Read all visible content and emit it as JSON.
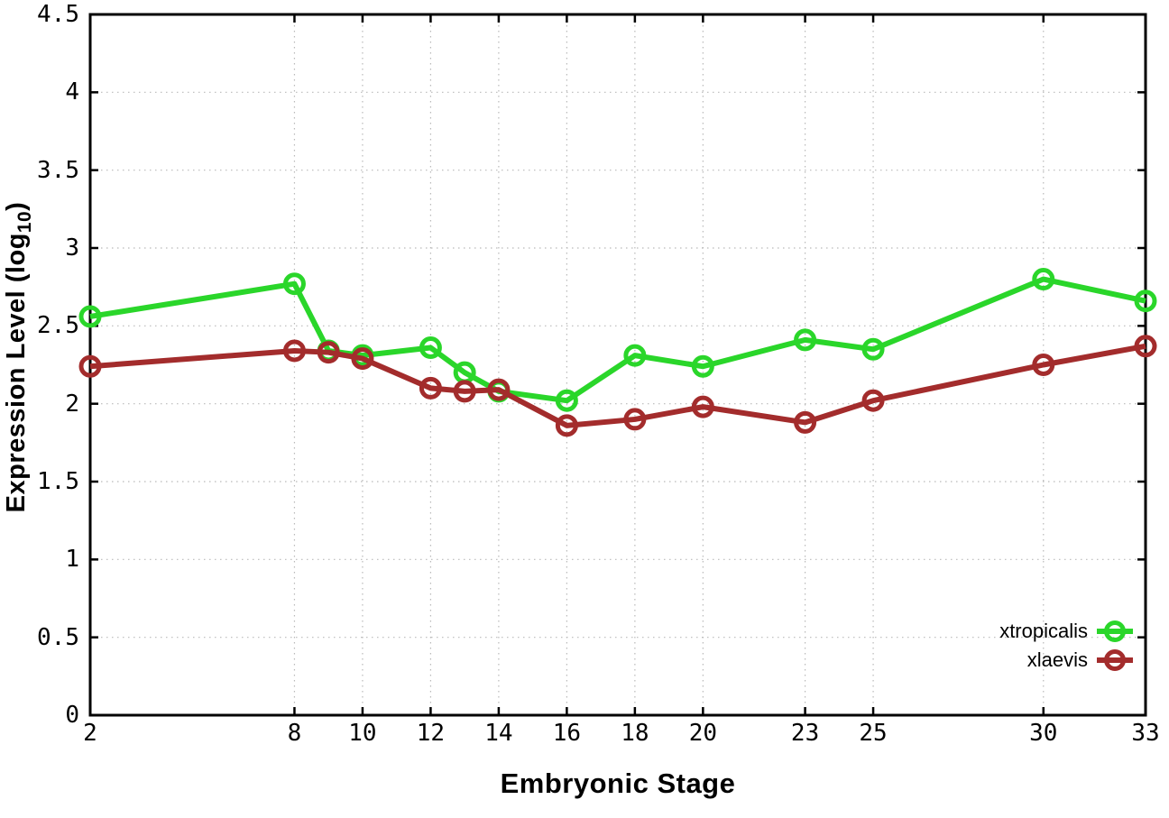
{
  "chart_data": {
    "type": "line",
    "title": "",
    "xlabel": "Embryonic Stage",
    "ylabel": "Expression Level (log10)",
    "ylabel_parts": {
      "pre": "Expression Level (log",
      "sub": "10",
      "post": ")"
    },
    "xlim": [
      2,
      33
    ],
    "ylim": [
      0,
      4.5
    ],
    "xticks": [
      2,
      8,
      10,
      12,
      14,
      16,
      18,
      20,
      23,
      25,
      30,
      33
    ],
    "xtick_labels": [
      "2",
      "8",
      "10",
      "12",
      "14",
      "16",
      "18",
      "20",
      "23",
      "25",
      "30",
      "33"
    ],
    "yticks": [
      0,
      0.5,
      1,
      1.5,
      2,
      2.5,
      3,
      3.5,
      4,
      4.5
    ],
    "ytick_labels": [
      "0",
      "0.5",
      "1",
      "1.5",
      "2",
      "2.5",
      "3",
      "3.5",
      "4",
      "4.5"
    ],
    "grid": true,
    "legend_position": "inside-bottom-right",
    "x": [
      2,
      8,
      9,
      10,
      12,
      13,
      14,
      16,
      18,
      20,
      23,
      25,
      30,
      33
    ],
    "series": [
      {
        "name": "xtropicalis",
        "color": "#2ad62a",
        "values": [
          2.56,
          2.77,
          2.34,
          2.31,
          2.36,
          2.2,
          2.08,
          2.02,
          2.31,
          2.24,
          2.41,
          2.35,
          2.8,
          2.66
        ]
      },
      {
        "name": "xlaevis",
        "color": "#a32c2c",
        "values": [
          2.24,
          2.34,
          2.33,
          2.29,
          2.1,
          2.08,
          2.09,
          1.86,
          1.9,
          1.98,
          1.88,
          2.02,
          2.25,
          2.37
        ]
      }
    ]
  },
  "colors": {
    "background": "#ffffff",
    "border": "#000000",
    "grid": "#b9b9b9",
    "text": "#000000"
  }
}
